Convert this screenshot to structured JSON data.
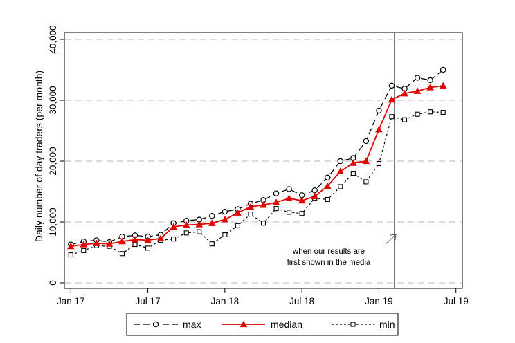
{
  "chart_data": {
    "type": "line",
    "ylabel": "Daily number of day traders (per month)",
    "ylim": [
      0,
      40000
    ],
    "yticks": [
      0,
      10000,
      20000,
      30000,
      40000
    ],
    "ytick_labels": [
      "0",
      "10,000",
      "20,000",
      "30,000",
      "40,000"
    ],
    "xticks": [
      0,
      6,
      12,
      18,
      24,
      30
    ],
    "xtick_labels": [
      "Jan 17",
      "Jul 17",
      "Jan 18",
      "Jul 18",
      "Jan 19",
      "Jul 19"
    ],
    "xlim": [
      -0.5,
      30.5
    ],
    "grid": "horizontal dashed",
    "legend_position": "bottom",
    "event": {
      "x": 25.2,
      "annotation_lines": [
        "when our results are",
        "first shown in the media"
      ]
    },
    "colors": {
      "max": "#000000",
      "median": "#e00000",
      "min": "#000000",
      "grid": "#c8c8c8"
    },
    "series": [
      {
        "name": "max",
        "x": [
          0,
          1,
          2,
          3,
          4,
          5,
          6,
          7,
          8,
          9,
          10,
          11,
          12,
          13,
          14,
          15,
          16,
          17,
          18,
          19,
          20,
          21,
          22,
          23,
          24,
          25,
          26,
          27,
          28,
          29
        ],
        "values": [
          6300,
          6800,
          7000,
          6700,
          7600,
          7800,
          7600,
          7900,
          9800,
          10200,
          10400,
          11000,
          11700,
          12100,
          13000,
          13600,
          14700,
          15400,
          14400,
          15200,
          17300,
          20000,
          20500,
          23300,
          28300,
          32400,
          31900,
          33700,
          33300,
          35000
        ]
      },
      {
        "name": "median",
        "x": [
          0,
          1,
          2,
          3,
          4,
          5,
          6,
          7,
          8,
          9,
          10,
          11,
          12,
          13,
          14,
          15,
          16,
          17,
          18,
          19,
          20,
          21,
          22,
          23,
          24,
          25,
          26,
          27,
          28,
          29
        ],
        "values": [
          6000,
          6300,
          6500,
          6400,
          6800,
          7100,
          7000,
          7300,
          9200,
          9500,
          9600,
          9800,
          10400,
          11500,
          12500,
          12800,
          13200,
          13900,
          13500,
          14200,
          15900,
          18300,
          19700,
          20000,
          25200,
          30100,
          31100,
          31500,
          32100,
          32400
        ]
      },
      {
        "name": "min",
        "x": [
          0,
          1,
          2,
          3,
          4,
          5,
          6,
          7,
          8,
          9,
          10,
          11,
          12,
          13,
          14,
          15,
          16,
          17,
          18,
          19,
          20,
          21,
          22,
          23,
          24,
          25,
          26,
          27,
          28,
          29
        ],
        "values": [
          4600,
          5300,
          6100,
          6000,
          4800,
          6300,
          5700,
          7000,
          7200,
          8200,
          8400,
          6400,
          7900,
          9400,
          11300,
          9800,
          12200,
          11600,
          11400,
          13900,
          13700,
          15800,
          18000,
          16600,
          19600,
          27300,
          26800,
          27700,
          28100,
          28000
        ]
      }
    ]
  }
}
